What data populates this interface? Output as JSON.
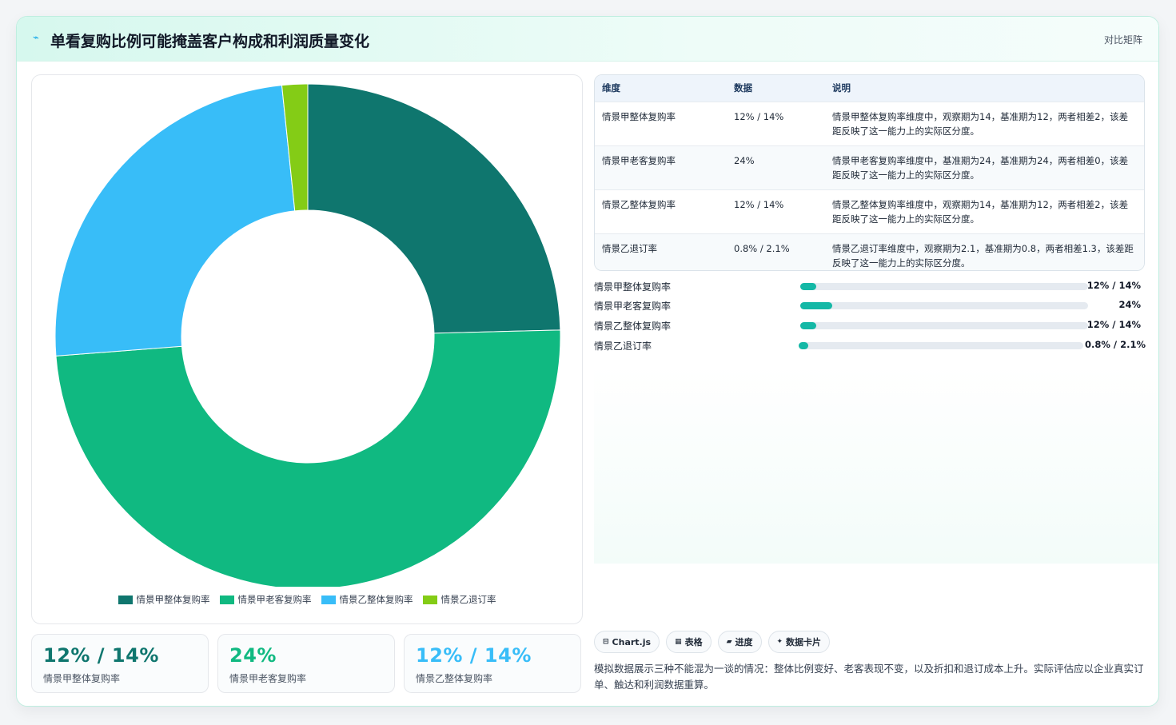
{
  "header": {
    "title": "单看复购比例可能掩盖客户构成和利润质量变化",
    "right_label": "对比矩阵"
  },
  "colors": {
    "teal_dark": "#0f766e",
    "green": "#10b981",
    "sky": "#38bdf8",
    "lime": "#84cc16",
    "bar_fill": "#14b8a6"
  },
  "chart_data": {
    "type": "pie",
    "donut": true,
    "categories": [
      "情景甲整体复购率",
      "情景甲老客复购率",
      "情景乙整体复购率",
      "情景乙退订率"
    ],
    "values": [
      12,
      24,
      12,
      0.8
    ],
    "colors": [
      "#0f766e",
      "#10b981",
      "#38bdf8",
      "#84cc16"
    ],
    "legend": "bottom"
  },
  "stats": [
    {
      "value": "12% / 14%",
      "label": "情景甲整体复购率",
      "color": "#0f766e"
    },
    {
      "value": "24%",
      "label": "情景甲老客复购率",
      "color": "#10b981"
    },
    {
      "value": "12% / 14%",
      "label": "情景乙整体复购率",
      "color": "#38bdf8"
    }
  ],
  "table": {
    "headers": [
      "维度",
      "数据",
      "说明"
    ],
    "rows": [
      {
        "dim": "情景甲整体复购率",
        "data": "12% / 14%",
        "desc": "情景甲整体复购率维度中，观察期为14，基准期为12，两者相差2，该差距反映了这一能力上的实际区分度。"
      },
      {
        "dim": "情景甲老客复购率",
        "data": "24%",
        "desc": "情景甲老客复购率维度中，基准期为24，基准期为24，两者相差0，该差距反映了这一能力上的实际区分度。"
      },
      {
        "dim": "情景乙整体复购率",
        "data": "12% / 14%",
        "desc": "情景乙整体复购率维度中，观察期为14，基准期为12，两者相差2，该差距反映了这一能力上的实际区分度。"
      },
      {
        "dim": "情景乙退订率",
        "data": "0.8% / 2.1%",
        "desc": "情景乙退订率维度中，观察期为2.1，基准期为0.8，两者相差1.3，该差距反映了这一能力上的实际区分度。"
      }
    ]
  },
  "progress": [
    {
      "label": "情景甲整体复购率",
      "value": "12% / 14%",
      "fraction": 0.055
    },
    {
      "label": "情景甲老客复购率",
      "value": "24%",
      "fraction": 0.11
    },
    {
      "label": "情景乙整体复购率",
      "value": "12% / 14%",
      "fraction": 0.055
    },
    {
      "label": "情景乙退订率",
      "value": "0.8% / 2.1%",
      "fraction": 0.035
    }
  ],
  "pills": [
    {
      "icon": "⊟",
      "label": "Chart.js"
    },
    {
      "icon": "▦",
      "label": "表格"
    },
    {
      "icon": "▰",
      "label": "进度"
    },
    {
      "icon": "✦",
      "label": "数据卡片"
    }
  ],
  "note": "模拟数据展示三种不能混为一谈的情况：整体比例变好、老客表现不变，以及折扣和退订成本上升。实际评估应以企业真实订单、触达和利润数据重算。"
}
